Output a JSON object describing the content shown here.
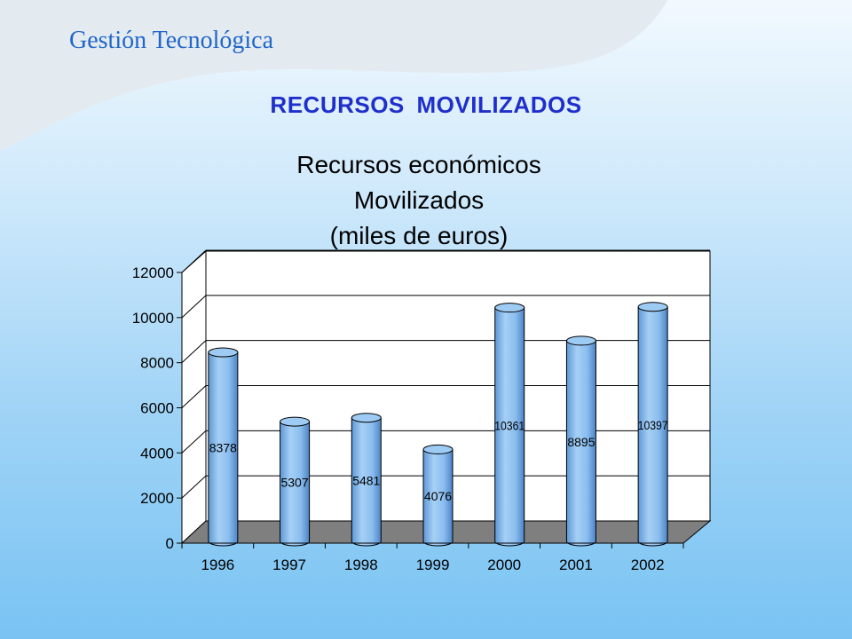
{
  "header": {
    "title": "Gestión Tecnológica"
  },
  "slide": {
    "title": "RECURSOS MOVILIZADOS"
  },
  "colors": {
    "title_blue": "#1e2fcc",
    "header_blue": "#2266c8",
    "bar_fill": "#8ec3f0",
    "floor": "#7f7f7f"
  },
  "chart_data": {
    "type": "bar",
    "title_line1": "Recursos económicos Movilizados",
    "title_line2": "(miles de euros)",
    "categories": [
      "1996",
      "1997",
      "1998",
      "1999",
      "2000",
      "2001",
      "2002"
    ],
    "values": [
      8378,
      5307,
      5481,
      4076,
      10361,
      8895,
      10397
    ],
    "data_labels": [
      "8378",
      "5307",
      "5481",
      "4076",
      "10361",
      "8895",
      "10397"
    ],
    "ylim": [
      0,
      12000
    ],
    "yticks": [
      0,
      2000,
      4000,
      6000,
      8000,
      10000,
      12000
    ],
    "grid": true,
    "legend": "none"
  }
}
